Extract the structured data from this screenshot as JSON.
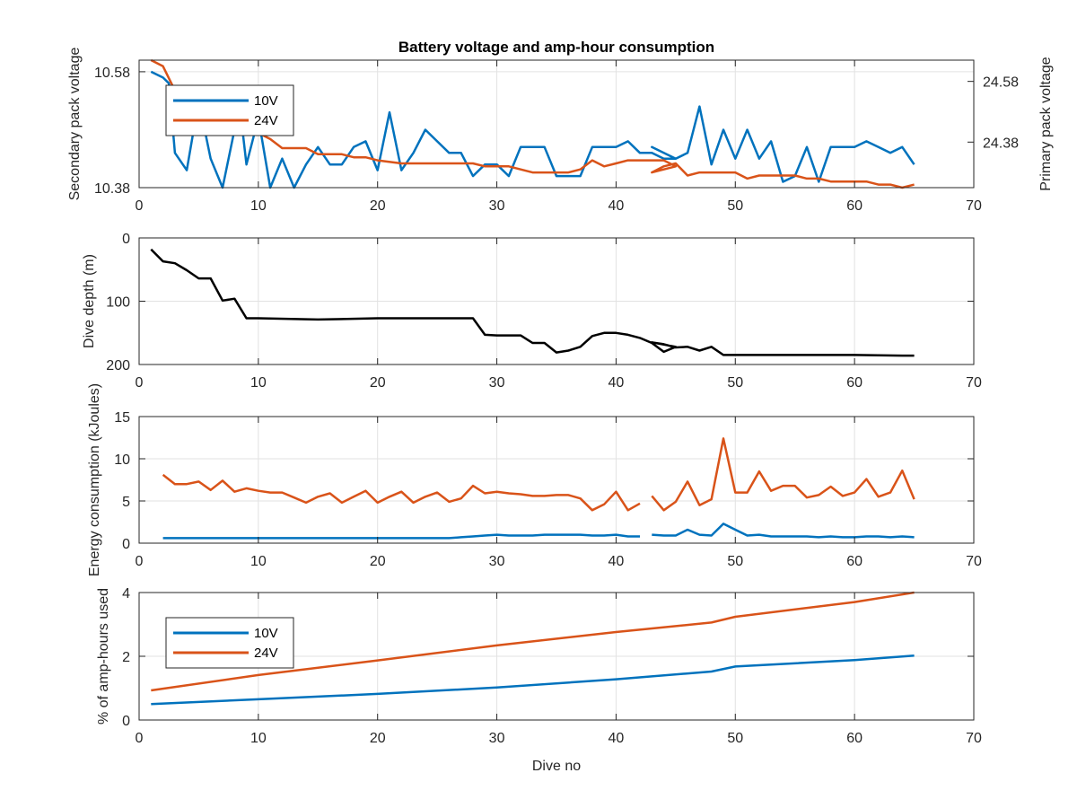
{
  "figure": {
    "title": "Battery voltage and amp-hour consumption",
    "xlabel": "Dive no"
  },
  "colors": {
    "series_10v": "#0072BD",
    "series_24v": "#D95319",
    "depth": "#000000"
  },
  "chart_data": [
    {
      "type": "line",
      "panel": "voltage",
      "title": "Battery voltage and amp-hour consumption",
      "xlabel": "",
      "ylabel_left": "Secondary pack voltage",
      "ylabel_right": "Primary pack voltage",
      "xlim": [
        0,
        70
      ],
      "ylim_left": [
        10.38,
        10.6
      ],
      "ylim_right": [
        24.23,
        24.65
      ],
      "xticks": [
        0,
        10,
        20,
        30,
        40,
        50,
        60,
        70
      ],
      "yticks_left": [
        10.38,
        10.58
      ],
      "yticks_right": [
        24.38,
        24.58
      ],
      "grid": true,
      "legend": {
        "position": "top-left",
        "entries": [
          "10V",
          "24V"
        ]
      },
      "series": [
        {
          "name": "10V",
          "axis": "left",
          "x": [
            1,
            2,
            2.5,
            3,
            4,
            5,
            6,
            7,
            8,
            8.5,
            9,
            10,
            11,
            12,
            13,
            14,
            15,
            16,
            17,
            18,
            19,
            20,
            21,
            22,
            23,
            24,
            25,
            26,
            27,
            28,
            29,
            30,
            31,
            32,
            33,
            34,
            35,
            36,
            37,
            38,
            39,
            40,
            41,
            42,
            43,
            44,
            45,
            43,
            44,
            45,
            46,
            47,
            48,
            49,
            50,
            51,
            52,
            53,
            54,
            55,
            56,
            57,
            58,
            59,
            60,
            61,
            62,
            63,
            64,
            65
          ],
          "y": [
            10.58,
            10.57,
            10.56,
            10.44,
            10.41,
            10.53,
            10.43,
            10.38,
            10.48,
            10.51,
            10.42,
            10.5,
            10.38,
            10.43,
            10.38,
            10.42,
            10.45,
            10.42,
            10.42,
            10.45,
            10.46,
            10.41,
            10.51,
            10.41,
            10.44,
            10.48,
            10.46,
            10.44,
            10.44,
            10.4,
            10.42,
            10.42,
            10.4,
            10.45,
            10.45,
            10.45,
            10.4,
            10.4,
            10.4,
            10.45,
            10.45,
            10.45,
            10.46,
            10.44,
            10.44,
            10.43,
            10.43,
            10.45,
            10.44,
            10.43,
            10.44,
            10.52,
            10.42,
            10.48,
            10.43,
            10.48,
            10.43,
            10.46,
            10.39,
            10.4,
            10.45,
            10.39,
            10.45,
            10.45,
            10.45,
            10.46,
            10.45,
            10.44,
            10.45,
            10.42
          ]
        },
        {
          "name": "24V",
          "axis": "right",
          "x": [
            1,
            2,
            3,
            4,
            5,
            6,
            7,
            8,
            9,
            10,
            11,
            12,
            13,
            14,
            15,
            16,
            17,
            18,
            19,
            20,
            22,
            25,
            28,
            29,
            30,
            31,
            32,
            33,
            34,
            35,
            36,
            37,
            38,
            39,
            40,
            41,
            42,
            43,
            44,
            45,
            43,
            44,
            45,
            46,
            47,
            48,
            49,
            50,
            51,
            52,
            53,
            54,
            55,
            56,
            57,
            58,
            59,
            60,
            61,
            62,
            63,
            64,
            65
          ],
          "y": [
            24.65,
            24.63,
            24.55,
            24.48,
            24.46,
            24.44,
            24.43,
            24.42,
            24.41,
            24.41,
            24.39,
            24.36,
            24.36,
            24.36,
            24.34,
            24.34,
            24.34,
            24.33,
            24.33,
            24.32,
            24.31,
            24.31,
            24.31,
            24.3,
            24.3,
            24.3,
            24.29,
            24.28,
            24.28,
            24.28,
            24.28,
            24.29,
            24.32,
            24.3,
            24.31,
            24.32,
            24.32,
            24.32,
            24.32,
            24.3,
            24.28,
            24.3,
            24.31,
            24.27,
            24.28,
            24.28,
            24.28,
            24.28,
            24.26,
            24.27,
            24.27,
            24.27,
            24.27,
            24.26,
            24.26,
            24.25,
            24.25,
            24.25,
            24.25,
            24.24,
            24.24,
            24.23,
            24.24
          ]
        }
      ]
    },
    {
      "type": "line",
      "panel": "depth",
      "xlabel": "",
      "ylabel": "Dive depth (m)",
      "xlim": [
        0,
        70
      ],
      "ylim": [
        0,
        200
      ],
      "y_reversed": true,
      "xticks": [
        0,
        10,
        20,
        30,
        40,
        50,
        60,
        70
      ],
      "yticks": [
        0,
        100,
        200
      ],
      "grid": true,
      "series": [
        {
          "x": [
            1,
            2,
            3,
            4,
            5,
            6,
            7,
            8,
            9,
            10,
            15,
            20,
            25,
            28,
            29,
            30,
            31,
            32,
            33,
            34,
            35,
            36,
            37,
            38,
            39,
            40,
            41,
            42,
            43,
            44,
            45,
            43,
            44,
            45,
            46,
            47,
            48,
            49,
            50,
            55,
            60,
            64,
            65
          ],
          "y": [
            18,
            37,
            40,
            51,
            64,
            64,
            99,
            96,
            127,
            127,
            129,
            127,
            127,
            127,
            153,
            154,
            154,
            154,
            166,
            166,
            181,
            178,
            172,
            155,
            150,
            150,
            153,
            158,
            166,
            180,
            172,
            165,
            168,
            173,
            172,
            178,
            172,
            185,
            185,
            185,
            185,
            186,
            186
          ]
        }
      ]
    },
    {
      "type": "line",
      "panel": "energy",
      "xlabel": "",
      "ylabel": "Energy consumption (kJoules)",
      "xlim": [
        0,
        70
      ],
      "ylim": [
        0,
        15
      ],
      "xticks": [
        0,
        10,
        20,
        30,
        40,
        50,
        60,
        70
      ],
      "yticks": [
        0,
        5,
        10,
        15
      ],
      "grid": true,
      "series": [
        {
          "name": "10V",
          "segments": [
            {
              "x": [
                2,
                3,
                4,
                5,
                6,
                7,
                8,
                9,
                10,
                11,
                12,
                13,
                14,
                15,
                16,
                17,
                18,
                19,
                20,
                21,
                22,
                23,
                24,
                25,
                26,
                27,
                28,
                29,
                30,
                31,
                32,
                33,
                34,
                35,
                36,
                37,
                38,
                39,
                40,
                41,
                42
              ],
              "y": [
                0.6,
                0.6,
                0.6,
                0.6,
                0.6,
                0.6,
                0.6,
                0.6,
                0.6,
                0.6,
                0.6,
                0.6,
                0.6,
                0.6,
                0.6,
                0.6,
                0.6,
                0.6,
                0.6,
                0.6,
                0.6,
                0.6,
                0.6,
                0.6,
                0.6,
                0.7,
                0.8,
                0.9,
                1.0,
                0.9,
                0.9,
                0.9,
                1.0,
                1.0,
                1.0,
                1.0,
                0.9,
                0.9,
                1.0,
                0.8,
                0.8
              ]
            },
            {
              "x": [
                43,
                44,
                45,
                46,
                47,
                48,
                49,
                50,
                51,
                52,
                53,
                54,
                55,
                56,
                57,
                58,
                59,
                60,
                61,
                62,
                63,
                64,
                65
              ],
              "y": [
                1.0,
                0.9,
                0.9,
                1.6,
                1.0,
                0.9,
                2.3,
                1.6,
                0.9,
                1.0,
                0.8,
                0.8,
                0.8,
                0.8,
                0.7,
                0.8,
                0.7,
                0.7,
                0.8,
                0.8,
                0.7,
                0.8,
                0.7
              ]
            }
          ]
        },
        {
          "name": "24V",
          "segments": [
            {
              "x": [
                2,
                3,
                4,
                5,
                6,
                7,
                8,
                9,
                10,
                11,
                12,
                13,
                14,
                15,
                16,
                17,
                18,
                19,
                20,
                21,
                22,
                23,
                24,
                25,
                26,
                27,
                28,
                29,
                30,
                31,
                32,
                33,
                34,
                35,
                36,
                37,
                38,
                39,
                40,
                41,
                42
              ],
              "y": [
                8.1,
                7.0,
                7.0,
                7.3,
                6.3,
                7.4,
                6.1,
                6.5,
                6.2,
                6.0,
                6.0,
                5.4,
                4.8,
                5.5,
                5.9,
                4.8,
                5.5,
                6.2,
                4.8,
                5.5,
                6.1,
                4.8,
                5.5,
                6.0,
                4.9,
                5.3,
                6.8,
                5.9,
                6.1,
                5.9,
                5.8,
                5.6,
                5.6,
                5.7,
                5.7,
                5.3,
                3.9,
                4.6,
                6.1,
                3.9,
                4.7
              ]
            },
            {
              "x": [
                43,
                44,
                45,
                46,
                47,
                48,
                49,
                50,
                51,
                52,
                53,
                54,
                55,
                56,
                57,
                58,
                59,
                60,
                61,
                62,
                63,
                64,
                65
              ],
              "y": [
                5.6,
                3.9,
                4.9,
                7.3,
                4.5,
                5.2,
                12.4,
                6.0,
                6.0,
                8.5,
                6.2,
                6.8,
                6.8,
                5.4,
                5.7,
                6.7,
                5.6,
                6.0,
                7.6,
                5.5,
                6.0,
                8.6,
                5.2
              ]
            }
          ]
        }
      ]
    },
    {
      "type": "line",
      "panel": "amp-hours",
      "xlabel": "Dive no",
      "ylabel": "% of amp-hours used",
      "xlim": [
        0,
        70
      ],
      "ylim": [
        0,
        4
      ],
      "xticks": [
        0,
        10,
        20,
        30,
        40,
        50,
        60,
        70
      ],
      "yticks": [
        0,
        2,
        4
      ],
      "grid": true,
      "legend": {
        "position": "middle-left",
        "entries": [
          "10V",
          "24V"
        ]
      },
      "series": [
        {
          "name": "10V",
          "x": [
            1,
            10,
            20,
            30,
            40,
            48,
            50,
            60,
            65
          ],
          "y": [
            0.5,
            0.65,
            0.82,
            1.02,
            1.28,
            1.52,
            1.68,
            1.88,
            2.02
          ]
        },
        {
          "name": "24V",
          "x": [
            1,
            10,
            20,
            30,
            40,
            48,
            50,
            60,
            65
          ],
          "y": [
            0.93,
            1.41,
            1.87,
            2.34,
            2.76,
            3.06,
            3.24,
            3.7,
            4.0
          ]
        }
      ]
    }
  ]
}
